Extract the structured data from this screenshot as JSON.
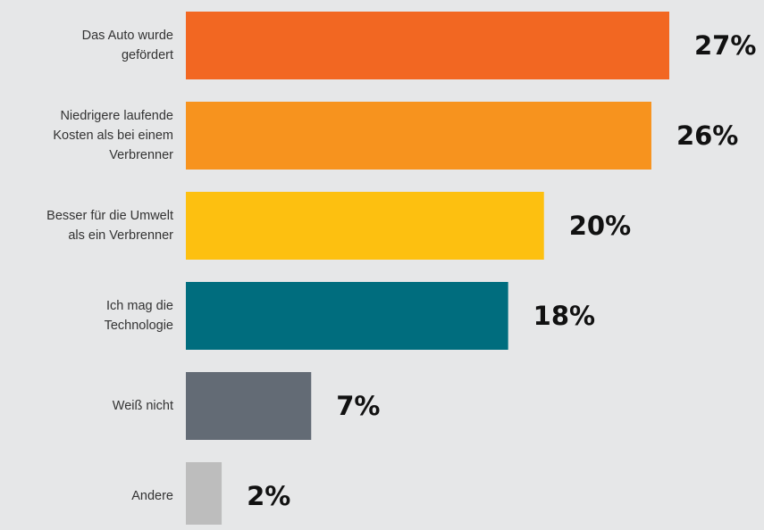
{
  "chart_data": {
    "type": "bar",
    "orientation": "horizontal",
    "categories": [
      "Das Auto wurde gefördert",
      "Niedrigere laufende Kosten als bei einem Verbrenner",
      "Besser für die Umwelt als ein Verbrenner",
      "Ich mag die Technologie",
      "Weiß nicht",
      "Andere"
    ],
    "values": [
      27,
      26,
      20,
      18,
      7,
      2
    ],
    "value_labels": [
      "27%",
      "26%",
      "20%",
      "18%",
      "7%",
      "2%"
    ],
    "colors": [
      "#f26722",
      "#f7931e",
      "#fdc010",
      "#006d7e",
      "#636b75",
      "#bdbdbd"
    ]
  }
}
